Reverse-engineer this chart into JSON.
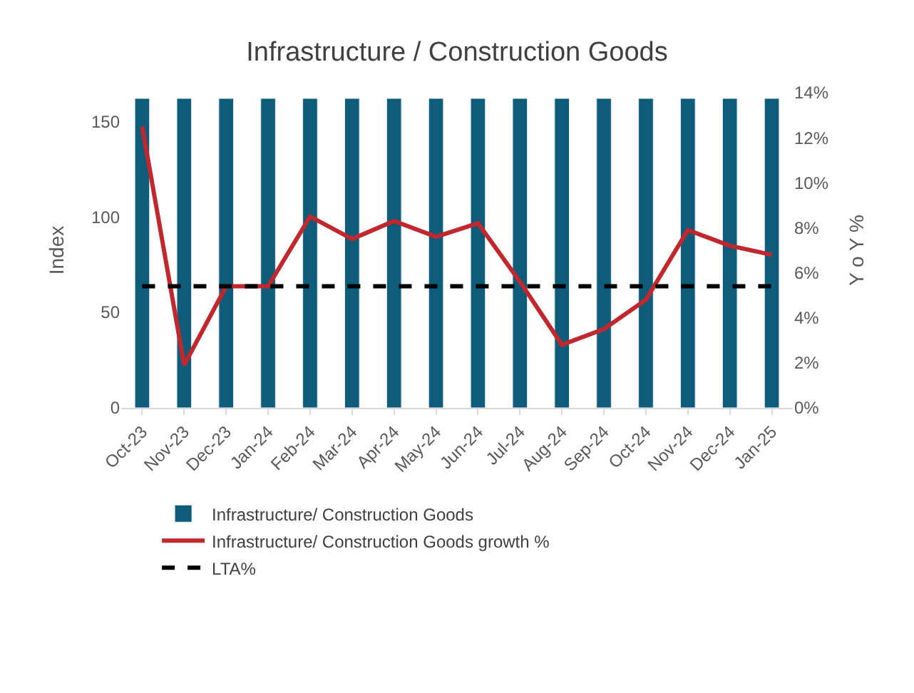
{
  "chart_data": {
    "type": "bar",
    "title": "Infrastructure / Construction Goods",
    "ylabel": "Index",
    "y2label": "Y o Y %",
    "categories": [
      "Oct-23",
      "Nov-23",
      "Dec-23",
      "Jan-24",
      "Feb-24",
      "Mar-24",
      "Apr-24",
      "May-24",
      "Jun-24",
      "Jul-24",
      "Aug-24",
      "Sep-24",
      "Oct-24",
      "Nov-24",
      "Dec-24",
      "Jan-25"
    ],
    "series": [
      {
        "name": "Infrastructure/ Construction Goods",
        "color": "#0e5c7a",
        "values": [
          162,
          162,
          162,
          162,
          162,
          162,
          162,
          162,
          162,
          162,
          162,
          162,
          162,
          162,
          162,
          162
        ]
      },
      {
        "name": "Infrastructure/ Construction Goods growth %",
        "type": "line",
        "axis": "y2",
        "color": "#c0282d",
        "line_style": "solid",
        "values": [
          12.5,
          1.9,
          5.4,
          5.4,
          8.5,
          7.5,
          8.3,
          7.6,
          8.2,
          5.6,
          2.8,
          3.5,
          4.8,
          7.9,
          7.2,
          6.8
        ]
      },
      {
        "name": "LTA%",
        "type": "line",
        "axis": "y2",
        "color": "#000000",
        "line_style": "dashed",
        "values": [
          5.4,
          5.4,
          5.4,
          5.4,
          5.4,
          5.4,
          5.4,
          5.4,
          5.4,
          5.4,
          5.4,
          5.4,
          5.4,
          5.4,
          5.4,
          5.4
        ]
      }
    ],
    "ylim": [
      0,
      165
    ],
    "yticks": [
      0,
      50,
      100,
      150
    ],
    "y2lim": [
      0,
      14
    ],
    "y2ticks": [
      {
        "value": 0,
        "label": "0%"
      },
      {
        "value": 2,
        "label": "2%"
      },
      {
        "value": 4,
        "label": "4%"
      },
      {
        "value": 6,
        "label": "6%"
      },
      {
        "value": 8,
        "label": "8%"
      },
      {
        "value": 10,
        "label": "10%"
      },
      {
        "value": 12,
        "label": "12%"
      },
      {
        "value": 14,
        "label": "14%"
      }
    ],
    "legend": "bottom",
    "marker": "none"
  }
}
